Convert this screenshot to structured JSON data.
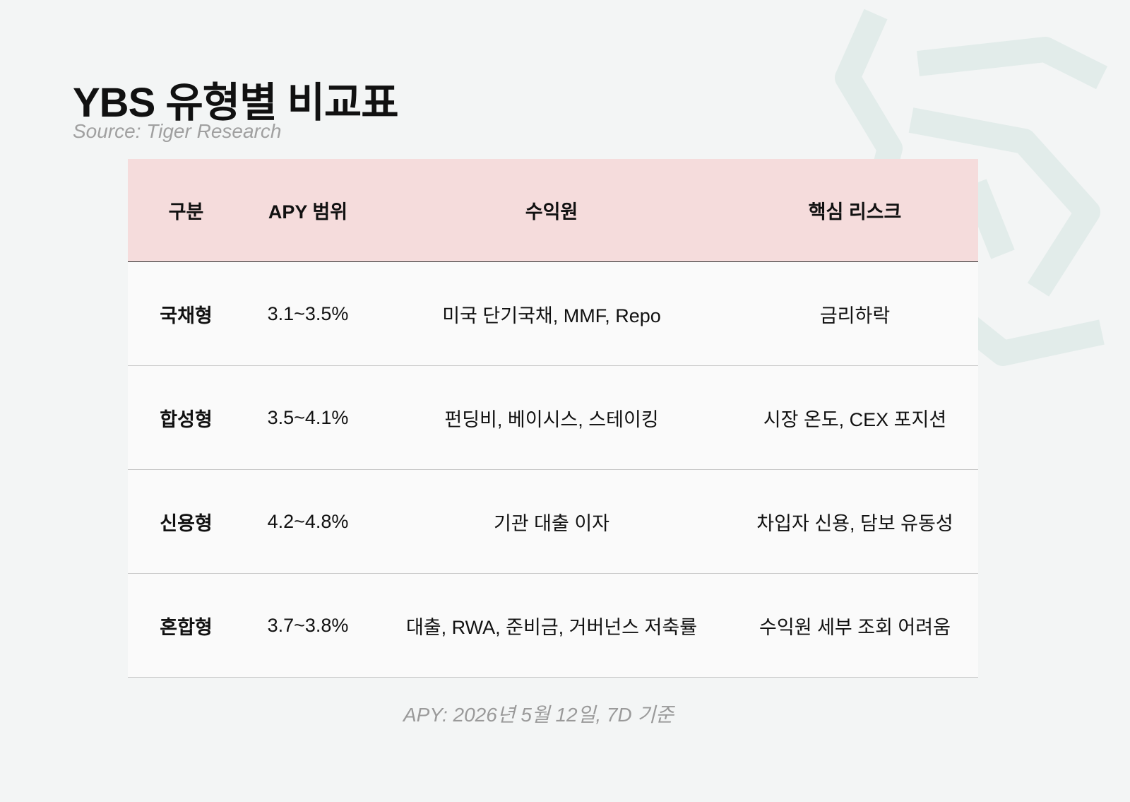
{
  "header": {
    "title": "YBS 유형별 비교표",
    "source": "Source: Tiger Research"
  },
  "table": {
    "columns": [
      "구분",
      "APY 범위",
      "수익원",
      "핵심 리스크"
    ],
    "rows": [
      [
        "국채형",
        "3.1~3.5%",
        "미국 단기국채, MMF, Repo",
        "금리하락"
      ],
      [
        "합성형",
        "3.5~4.1%",
        "펀딩비, 베이시스, 스테이킹",
        "시장 온도, CEX 포지션"
      ],
      [
        "신용형",
        "4.2~4.8%",
        "기관 대출 이자",
        "차입자 신용, 담보 유동성"
      ],
      [
        "혼합형",
        "3.7~3.8%",
        "대출, RWA, 준비금, 거버넌스 저축률",
        "수익원 세부 조회 어려움"
      ]
    ]
  },
  "footnote": "APY: 2026년 5월 12일, 7D 기준"
}
